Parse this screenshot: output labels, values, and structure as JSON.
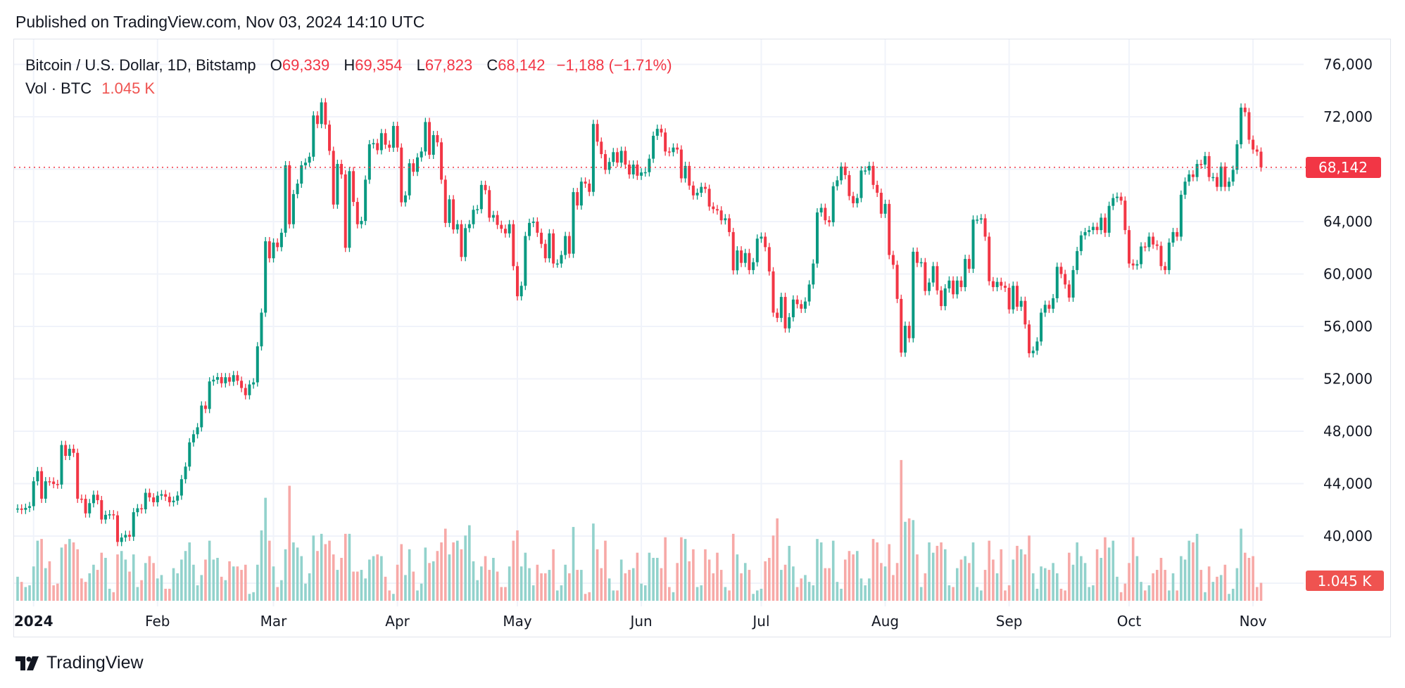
{
  "header": {
    "published": "Published on TradingView.com, Nov 03, 2024 14:10 UTC"
  },
  "legend": {
    "symbol": "Bitcoin / U.S. Dollar, 1D, Bitstamp",
    "open_label": "O",
    "open": "69,339",
    "high_label": "H",
    "high": "69,354",
    "low_label": "L",
    "low": "67,823",
    "close_label": "C",
    "close": "68,142",
    "change": "−1,188 (−1.71%)",
    "volume_label": "Vol · BTC",
    "volume": "1.045 K"
  },
  "footer": {
    "brand": "TradingView",
    "logo_icon": "tradingview-logo-icon"
  },
  "colors": {
    "up": "#089981",
    "down": "#f23645",
    "volume_up": "#92d2cc",
    "volume_down": "#f7a9a7",
    "grid": "#f0f3fa"
  },
  "chart_data": {
    "type": "candlestick",
    "price_axis": {
      "ticks": [
        "76,000",
        "72,000",
        "64,000",
        "60,000",
        "56,000",
        "52,000",
        "48,000",
        "44,000",
        "40,000"
      ],
      "tick_values": [
        76000,
        72000,
        64000,
        60000,
        56000,
        52000,
        48000,
        44000,
        40000
      ],
      "position": "right"
    },
    "last_price_label": "68,142",
    "last_price": 68142,
    "last_volume_label": "1.045 K",
    "time_axis": [
      {
        "label": "2024",
        "date": "2024-01-01"
      },
      {
        "label": "Feb",
        "date": "2024-02-01"
      },
      {
        "label": "Mar",
        "date": "2024-03-01"
      },
      {
        "label": "Apr",
        "date": "2024-04-01"
      },
      {
        "label": "May",
        "date": "2024-05-01"
      },
      {
        "label": "Jun",
        "date": "2024-06-01"
      },
      {
        "label": "Jul",
        "date": "2024-07-01"
      },
      {
        "label": "Aug",
        "date": "2024-08-01"
      },
      {
        "label": "Sep",
        "date": "2024-09-01"
      },
      {
        "label": "Oct",
        "date": "2024-10-01"
      },
      {
        "label": "Nov",
        "date": "2024-11-01"
      }
    ],
    "grid": true,
    "volume_unit": "K BTC",
    "months": [
      {
        "month": "2023-12",
        "first_day": 28,
        "close": [
          42100,
          42000,
          42150,
          42280
        ],
        "volume": [
          1.4,
          1.1,
          0.8,
          0.9
        ]
      },
      {
        "month": "2024-01",
        "first_day": 1,
        "close": [
          44180,
          44950,
          42850,
          44180,
          44160,
          43970,
          43930,
          46950,
          46120,
          46660,
          46350,
          42850,
          42840,
          41730,
          42510,
          43150,
          42740,
          41260,
          41620,
          41660,
          41580,
          39550,
          39890,
          40090,
          39950,
          41820,
          42120,
          42040,
          43300,
          42950,
          42580
        ],
        "volume": [
          2.0,
          3.5,
          3.6,
          1.9,
          2.3,
          0.9,
          1.0,
          3.1,
          3.3,
          3.6,
          3.4,
          3.0,
          1.3,
          1.1,
          1.6,
          2.1,
          1.8,
          2.8,
          2.5,
          0.7,
          0.5,
          2.7,
          2.9,
          2.4,
          1.7,
          2.7,
          0.8,
          1.2,
          2.2,
          2.6,
          2.2
        ]
      },
      {
        "month": "2024-02",
        "first_day": 1,
        "close": [
          43080,
          43190,
          43000,
          42580,
          42700,
          43090,
          44340,
          45300,
          47150,
          47770,
          48300,
          49960,
          49700,
          51800,
          51930,
          52130,
          51660,
          52120,
          51780,
          52280,
          51850,
          51300,
          50750,
          51570,
          51730,
          54480,
          57050,
          62500,
          61200
        ],
        "volume": [
          1.3,
          1.5,
          0.7,
          0.7,
          1.9,
          1.6,
          2.4,
          2.9,
          3.4,
          2.1,
          0.9,
          1.5,
          2.4,
          3.5,
          2.4,
          2.5,
          1.4,
          1.2,
          2.3,
          2.0,
          2.0,
          1.8,
          2.1,
          0.4,
          0.5,
          2.1,
          4.1,
          6.0,
          3.5
        ]
      },
      {
        "month": "2024-03",
        "first_day": 1,
        "close": [
          62400,
          62050,
          63150,
          68300,
          63800,
          66100,
          66900,
          68300,
          68500,
          68950,
          72100,
          71450,
          73100,
          71400,
          69400,
          65300,
          68400,
          67600,
          62000,
          67850,
          65500,
          63800,
          64050,
          67200,
          69900,
          69990,
          69450,
          70750,
          69870,
          69640,
          71300
        ],
        "volume": [
          2.0,
          0.8,
          1.2,
          3.0,
          6.7,
          3.4,
          3.1,
          2.6,
          1.0,
          1.6,
          3.8,
          2.9,
          3.9,
          3.3,
          3.5,
          2.7,
          1.8,
          2.5,
          3.9,
          3.9,
          1.7,
          1.7,
          1.8,
          1.3,
          2.4,
          2.6,
          2.7,
          2.6,
          1.4,
          0.6,
          0.4
        ]
      },
      {
        "month": "2024-04",
        "first_day": 1,
        "close": [
          69650,
          65470,
          66000,
          68450,
          67800,
          68900,
          69350,
          71600,
          69100,
          70600,
          70050,
          67200,
          63900,
          65700,
          63400,
          63800,
          61300,
          63500,
          63800,
          64900,
          64950,
          66800,
          66400,
          64300,
          64500,
          63750,
          63450,
          63100,
          63800,
          60600
        ],
        "volume": [
          2.1,
          3.3,
          1.5,
          3.0,
          1.7,
          0.6,
          1.0,
          3.1,
          2.2,
          2.3,
          2.9,
          3.4,
          4.2,
          2.7,
          3.4,
          3.5,
          3.0,
          3.8,
          4.4,
          2.3,
          1.2,
          2.0,
          2.6,
          1.8,
          2.5,
          1.7,
          0.8,
          0.8,
          2.0,
          3.5
        ]
      },
      {
        "month": "2024-05",
        "first_day": 1,
        "close": [
          58300,
          59100,
          62900,
          63900,
          64000,
          63150,
          62300,
          61200,
          63100,
          60800,
          60800,
          61450,
          62900,
          61550,
          66250,
          65230,
          67050,
          66900,
          66270,
          71450,
          70100,
          69150,
          67950,
          68550,
          69300,
          68500,
          69400,
          68350,
          67600,
          68350,
          67500
        ],
        "volume": [
          4.1,
          2.0,
          2.8,
          1.9,
          0.9,
          2.1,
          1.6,
          1.6,
          1.8,
          3.0,
          0.6,
          0.9,
          2.1,
          1.6,
          4.3,
          1.8,
          1.8,
          0.4,
          0.5,
          4.5,
          3.0,
          1.9,
          3.5,
          1.3,
          0.6,
          0.6,
          2.4,
          1.6,
          1.8,
          1.9,
          2.8
        ]
      },
      {
        "month": "2024-06",
        "first_day": 1,
        "close": [
          67750,
          67770,
          68800,
          70550,
          71080,
          70800,
          69350,
          69300,
          69650,
          69500,
          67300,
          68250,
          66750,
          66000,
          66200,
          66650,
          66500,
          65150,
          64950,
          64850,
          64100,
          64250,
          63200,
          60280,
          61800,
          60850,
          61600,
          60300,
          60900,
          62700
        ],
        "volume": [
          1.0,
          0.9,
          2.8,
          2.5,
          2.5,
          1.9,
          3.7,
          0.8,
          0.5,
          2.2,
          3.7,
          3.6,
          2.3,
          3.0,
          0.8,
          0.9,
          3.0,
          2.4,
          1.6,
          2.8,
          1.8,
          0.8,
          0.6,
          3.9,
          2.7,
          1.6,
          2.2,
          1.8,
          0.4,
          0.6
        ]
      },
      {
        "month": "2024-07",
        "first_day": 1,
        "close": [
          62850,
          62050,
          60200,
          57050,
          56650,
          58250,
          55850,
          56700,
          58050,
          57700,
          57350,
          57900,
          59200,
          60800,
          64700,
          65050,
          64100,
          63950,
          66700,
          67150,
          68200,
          67550,
          65950,
          65400,
          65800,
          67900,
          67900,
          68250,
          66800,
          66200,
          64600
        ],
        "volume": [
          0.7,
          2.3,
          2.5,
          3.8,
          4.8,
          1.8,
          2.1,
          3.2,
          2.0,
          0.8,
          1.3,
          1.5,
          1.1,
          0.9,
          3.6,
          3.4,
          1.9,
          1.9,
          3.5,
          1.1,
          0.7,
          2.4,
          2.9,
          2.7,
          2.9,
          1.3,
          0.9,
          1.3,
          3.6,
          3.4,
          2.2
        ]
      },
      {
        "month": "2024-08",
        "first_day": 1,
        "close": [
          65350,
          61450,
          60700,
          58100,
          54000,
          56050,
          55100,
          61700,
          60850,
          60900,
          58700,
          59350,
          60600,
          58750,
          57550,
          58900,
          59500,
          58450,
          59500,
          59000,
          61150,
          60400,
          64150,
          64150,
          64250,
          62850,
          59450,
          59000,
          59400,
          59100,
          58950
        ],
        "volume": [
          2.0,
          3.3,
          1.5,
          2.2,
          8.2,
          4.6,
          4.8,
          4.7,
          2.7,
          0.8,
          1.6,
          3.4,
          2.8,
          3.2,
          3.4,
          3.0,
          0.9,
          0.8,
          1.9,
          2.4,
          2.6,
          2.2,
          3.4,
          0.8,
          0.6,
          1.8,
          3.5,
          2.4,
          1.6,
          3.0,
          0.6
        ]
      },
      {
        "month": "2024-09",
        "first_day": 1,
        "close": [
          57300,
          59100,
          57500,
          57950,
          56150,
          53950,
          54150,
          54850,
          57050,
          57650,
          57350,
          58150,
          60550,
          60000,
          59200,
          58200,
          60300,
          61750,
          62950,
          63200,
          63350,
          63600,
          63350,
          64300,
          63150,
          65200,
          65800,
          65900,
          65600,
          63350
        ],
        "volume": [
          0.9,
          2.4,
          3.2,
          3.0,
          2.7,
          3.8,
          1.6,
          0.7,
          2.0,
          1.9,
          1.8,
          2.2,
          1.6,
          0.7,
          0.6,
          2.8,
          2.1,
          3.4,
          2.6,
          2.2,
          0.8,
          0.9,
          3.0,
          2.5,
          3.7,
          3.1,
          3.5,
          1.4,
          0.5,
          1.0
        ]
      },
      {
        "month": "2024-10",
        "first_day": 1,
        "close": [
          60800,
          60650,
          60750,
          62100,
          62050,
          62850,
          62250,
          62150,
          60600,
          60300,
          62400,
          63200,
          62850,
          66050,
          67050,
          67600,
          67400,
          68400,
          68350,
          69000,
          67400,
          67400,
          66650,
          68200,
          66650,
          67050,
          67950,
          69900,
          72700,
          72350,
          70250
        ],
        "volume": [
          2.2,
          3.7,
          2.6,
          1.1,
          0.6,
          0.9,
          1.6,
          1.8,
          2.5,
          1.8,
          0.6,
          1.6,
          0.6,
          2.6,
          2.4,
          3.5,
          3.4,
          3.9,
          1.8,
          0.5,
          2.0,
          1.1,
          1.4,
          1.5,
          2.1,
          0.4,
          0.7,
          1.9,
          4.2,
          2.8,
          2.5
        ]
      },
      {
        "month": "2024-11",
        "first_day": 1,
        "close": [
          69500,
          69339,
          68142
        ],
        "volume": [
          2.6,
          0.8,
          1.045
        ]
      }
    ]
  }
}
